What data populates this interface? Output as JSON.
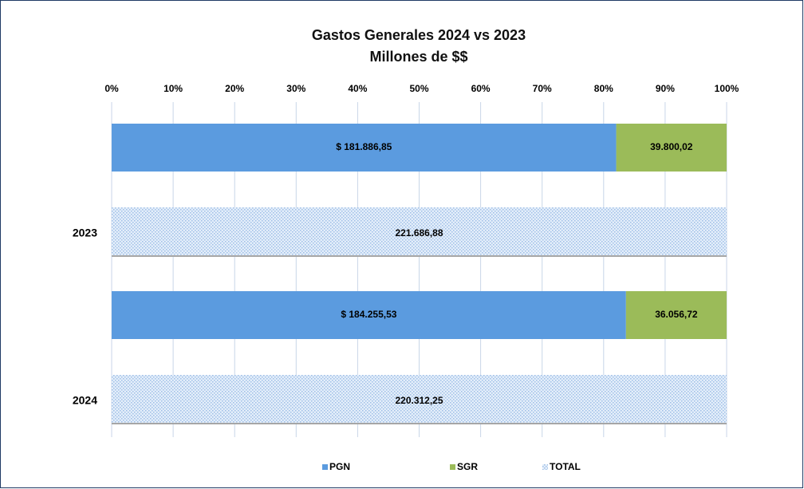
{
  "chart_data": {
    "type": "bar_percent_stacked",
    "title": "Gastos Generales  2024 vs 2023",
    "subtitle": "Millones de $$",
    "categories": [
      "2023",
      "2024"
    ],
    "series": [
      {
        "name": "PGN",
        "color": "#5b9bdf",
        "values": [
          181886.85,
          184255.53
        ],
        "value_labels": [
          "$ 181.886,85",
          "$ 184.255,53"
        ]
      },
      {
        "name": "SGR",
        "color": "#9bbb59",
        "values": [
          39800.02,
          36056.72
        ],
        "value_labels": [
          "39.800,02",
          "36.056,72"
        ]
      },
      {
        "name": "TOTAL",
        "color": "#c5d9f1",
        "values": [
          221686.88,
          220312.25
        ],
        "value_labels": [
          "221.686,88",
          "220.312,25"
        ]
      }
    ],
    "xlim": [
      0,
      100
    ],
    "xticks": [
      {
        "value": 0,
        "label": "0%"
      },
      {
        "value": 10,
        "label": "10%"
      },
      {
        "value": 20,
        "label": "20%"
      },
      {
        "value": 30,
        "label": "30%"
      },
      {
        "value": 40,
        "label": "40%"
      },
      {
        "value": 50,
        "label": "50%"
      },
      {
        "value": 60,
        "label": "60%"
      },
      {
        "value": 70,
        "label": "70%"
      },
      {
        "value": 80,
        "label": "80%"
      },
      {
        "value": 90,
        "label": "90%"
      },
      {
        "value": 100,
        "label": "100%"
      }
    ],
    "grid": true,
    "legend": "bottom"
  }
}
